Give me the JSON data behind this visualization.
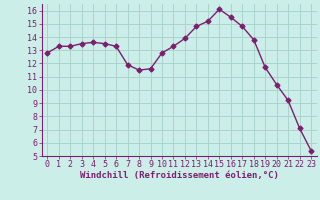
{
  "x": [
    0,
    1,
    2,
    3,
    4,
    5,
    6,
    7,
    8,
    9,
    10,
    11,
    12,
    13,
    14,
    15,
    16,
    17,
    18,
    19,
    20,
    21,
    22,
    23
  ],
  "y": [
    12.8,
    13.3,
    13.3,
    13.5,
    13.6,
    13.5,
    13.3,
    11.9,
    11.5,
    11.6,
    12.8,
    13.3,
    13.9,
    14.8,
    15.2,
    16.1,
    15.5,
    14.8,
    13.8,
    11.7,
    10.4,
    9.2,
    7.1,
    5.4
  ],
  "line_color": "#7B1F6E",
  "marker": "D",
  "markersize": 2.5,
  "linewidth": 1.0,
  "bg_color": "#cceee8",
  "grid_color": "#aad4ce",
  "xlabel": "Windchill (Refroidissement éolien,°C)",
  "xlabel_color": "#7B1F6E",
  "xlabel_fontsize": 6.5,
  "tick_color": "#7B1F6E",
  "tick_fontsize": 6.0,
  "ylim": [
    5,
    16.5
  ],
  "xlim": [
    -0.5,
    23.5
  ],
  "yticks": [
    5,
    6,
    7,
    8,
    9,
    10,
    11,
    12,
    13,
    14,
    15,
    16
  ],
  "xticks": [
    0,
    1,
    2,
    3,
    4,
    5,
    6,
    7,
    8,
    9,
    10,
    11,
    12,
    13,
    14,
    15,
    16,
    17,
    18,
    19,
    20,
    21,
    22,
    23
  ]
}
